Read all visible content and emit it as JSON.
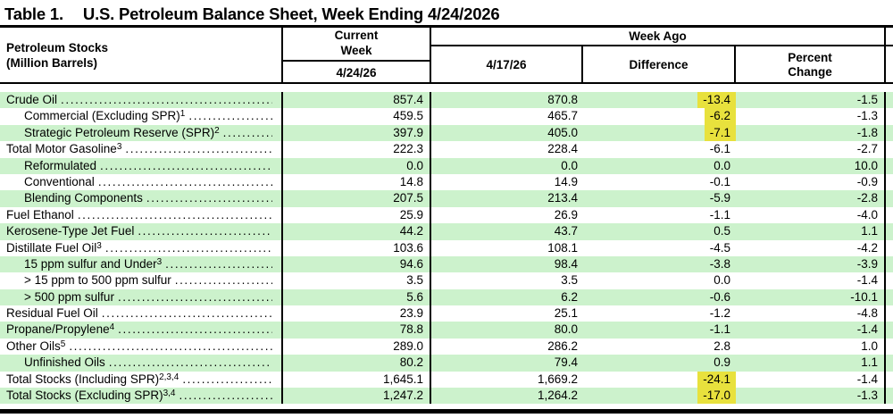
{
  "title": {
    "prefix": "Table 1.",
    "text": "U.S. Petroleum Balance Sheet, Week Ending 4/24/2026"
  },
  "columns": {
    "stub_line1": "Petroleum Stocks",
    "stub_line2": "(Million Barrels)",
    "current_week_label": "Current Week",
    "current_week_date": "4/24/26",
    "week_ago_label": "Week Ago",
    "week_ago_date": "4/17/26",
    "difference_label": "Difference",
    "percent_change_label": "Percent Change"
  },
  "colors": {
    "row_green": "#ccf2cc",
    "highlight_yellow": "#e8e13d"
  },
  "rows": [
    {
      "label": "Crude Oil",
      "sup": "",
      "current": "857.4",
      "week_ago": "870.8",
      "difference": "-13.4",
      "percent_change": "-1.5"
    },
    {
      "label": "Commercial (Excluding SPR)",
      "sup": "1",
      "current": "459.5",
      "week_ago": "465.7",
      "difference": "-6.2",
      "percent_change": "-1.3"
    },
    {
      "label": "Strategic Petroleum Reserve (SPR)",
      "sup": "2",
      "current": "397.9",
      "week_ago": "405.0",
      "difference": "-7.1",
      "percent_change": "-1.8"
    },
    {
      "label": "Total Motor Gasoline",
      "sup": "3",
      "current": "222.3",
      "week_ago": "228.4",
      "difference": "-6.1",
      "percent_change": "-2.7"
    },
    {
      "label": "Reformulated",
      "sup": "",
      "current": "0.0",
      "week_ago": "0.0",
      "difference": "0.0",
      "percent_change": "10.0"
    },
    {
      "label": "Conventional",
      "sup": "",
      "current": "14.8",
      "week_ago": "14.9",
      "difference": "-0.1",
      "percent_change": "-0.9"
    },
    {
      "label": "Blending Components",
      "sup": "",
      "current": "207.5",
      "week_ago": "213.4",
      "difference": "-5.9",
      "percent_change": "-2.8"
    },
    {
      "label": "Fuel Ethanol",
      "sup": "",
      "current": "25.9",
      "week_ago": "26.9",
      "difference": "-1.1",
      "percent_change": "-4.0"
    },
    {
      "label": "Kerosene-Type Jet Fuel",
      "sup": "",
      "current": "44.2",
      "week_ago": "43.7",
      "difference": "0.5",
      "percent_change": "1.1"
    },
    {
      "label": "Distillate Fuel Oil",
      "sup": "3",
      "current": "103.6",
      "week_ago": "108.1",
      "difference": "-4.5",
      "percent_change": "-4.2"
    },
    {
      "label": "15 ppm sulfur and Under",
      "sup": "3",
      "current": "94.6",
      "week_ago": "98.4",
      "difference": "-3.8",
      "percent_change": "-3.9"
    },
    {
      "label": "> 15 ppm to 500 ppm sulfur",
      "sup": "",
      "current": "3.5",
      "week_ago": "3.5",
      "difference": "0.0",
      "percent_change": "-1.4"
    },
    {
      "label": "> 500 ppm sulfur",
      "sup": "",
      "current": "5.6",
      "week_ago": "6.2",
      "difference": "-0.6",
      "percent_change": "-10.1"
    },
    {
      "label": "Residual Fuel Oil",
      "sup": "",
      "current": "23.9",
      "week_ago": "25.1",
      "difference": "-1.2",
      "percent_change": "-4.8"
    },
    {
      "label": "Propane/Propylene",
      "sup": "4",
      "current": "78.8",
      "week_ago": "80.0",
      "difference": "-1.1",
      "percent_change": "-1.4"
    },
    {
      "label": "Other Oils",
      "sup": "5",
      "current": "289.0",
      "week_ago": "286.2",
      "difference": "2.8",
      "percent_change": "1.0"
    },
    {
      "label": "Unfinished Oils",
      "sup": "",
      "current": "80.2",
      "week_ago": "79.4",
      "difference": "0.9",
      "percent_change": "1.1"
    },
    {
      "label": "Total Stocks (Including SPR)",
      "sup": "2,3,4",
      "current": "1,645.1",
      "week_ago": "1,669.2",
      "difference": "-24.1",
      "percent_change": "-1.4"
    },
    {
      "label": "Total Stocks (Excluding SPR)",
      "sup": "3,4",
      "current": "1,247.2",
      "week_ago": "1,264.2",
      "difference": "-17.0",
      "percent_change": "-1.3"
    }
  ]
}
